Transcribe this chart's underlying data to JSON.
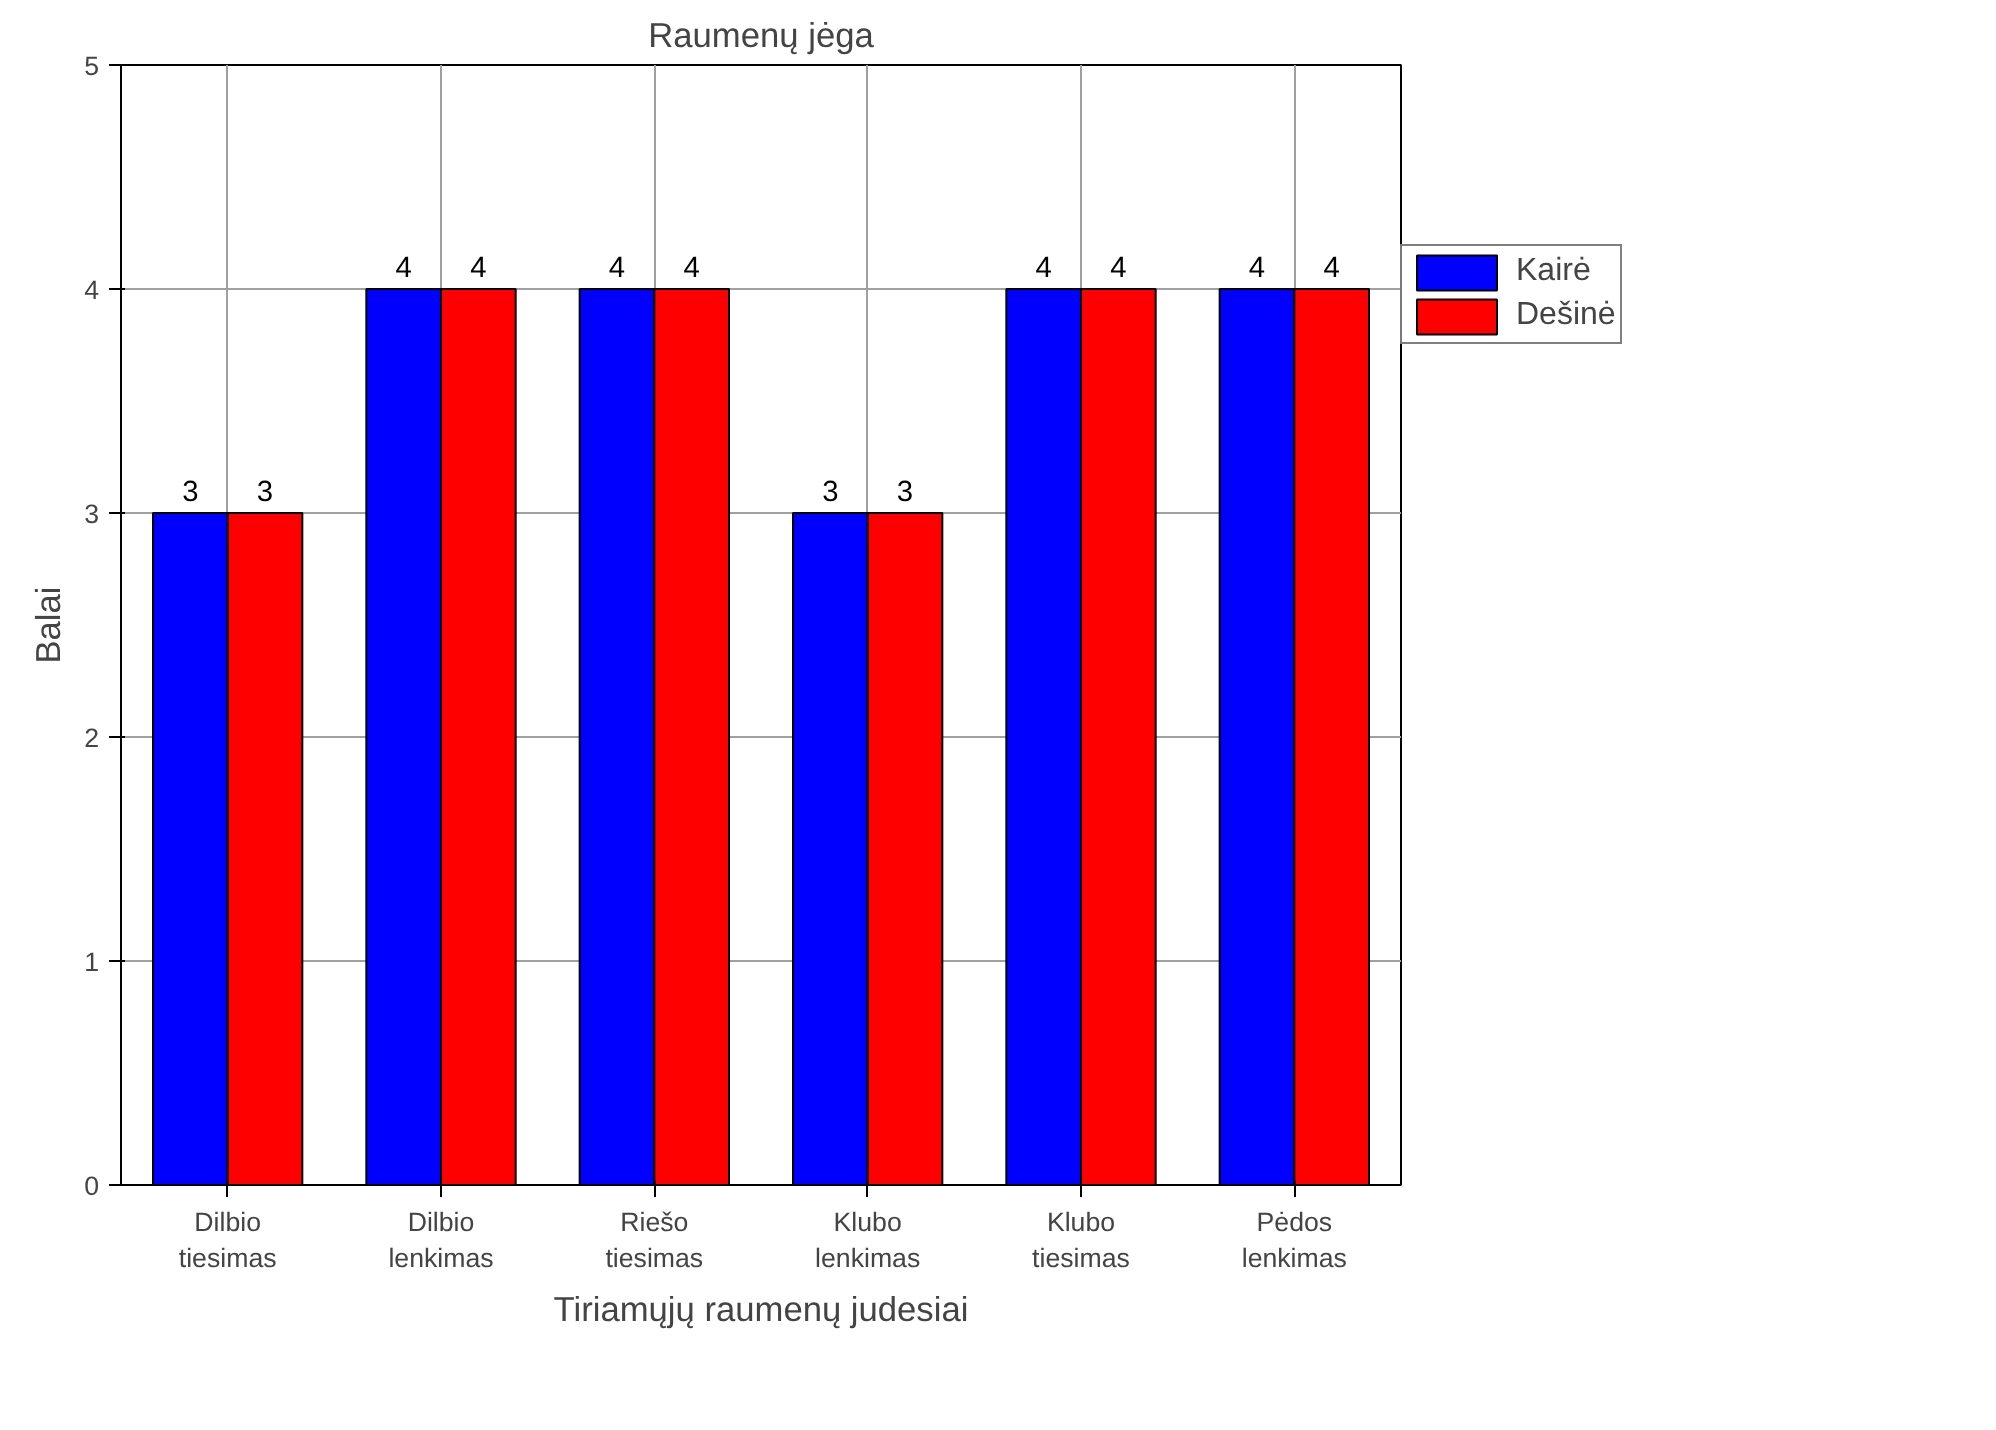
{
  "chart_data": {
    "type": "bar",
    "title": "Raumenų jėga",
    "xlabel": "Tiriamųjų raumenų judesiai",
    "ylabel": "Balai",
    "categories": [
      "Dilbio\ntiesimas",
      "Dilbio\nlenkimas",
      "Riešo\ntiesimas",
      "Klubo\nlenkimas",
      "Klubo\ntiesimas",
      "Pėdos\nlenkimas"
    ],
    "series": [
      {
        "name": "Kairė",
        "color": "#0000ff",
        "values": [
          3,
          4,
          4,
          3,
          4,
          4
        ]
      },
      {
        "name": "Dešinė",
        "color": "#ff0000",
        "values": [
          3,
          4,
          4,
          3,
          4,
          4
        ]
      }
    ],
    "ylim": [
      0,
      5
    ],
    "yticks": [
      0,
      1,
      2,
      3,
      4,
      5
    ],
    "grid": true,
    "legend": "right",
    "data_labels": true
  }
}
